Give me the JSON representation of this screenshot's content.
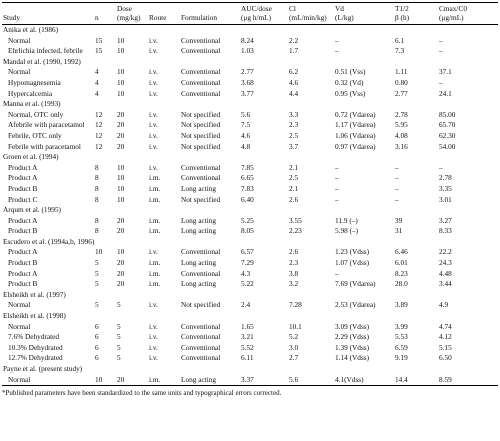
{
  "table": {
    "header": [
      [
        "Study",
        ""
      ],
      [
        "",
        "n"
      ],
      [
        "Dose",
        "(mg/kg)"
      ],
      [
        "",
        "Route"
      ],
      [
        "",
        "Formulation"
      ],
      [
        "AUC/dose",
        "(μg h/mL)"
      ],
      [
        "Cl",
        "(mL/min/kg)"
      ],
      [
        "Vd",
        "(L/kg)"
      ],
      [
        "T1/2",
        "β (h)"
      ],
      [
        "Cmax/C0",
        "(μg/mL)"
      ]
    ],
    "groups": [
      {
        "study": "Anika et al. (1986)",
        "rows": [
          [
            "Normal",
            "15",
            "10",
            "i.v.",
            "Conventional",
            "8.24",
            "2.2",
            "–",
            "6.1",
            "–"
          ],
          [
            "Ehrlichia infected, febrile",
            "15",
            "10",
            "i.v.",
            "Conventional",
            "1.03",
            "1.7",
            "–",
            "7.3",
            "–"
          ]
        ]
      },
      {
        "study": "Mandal et al. (1990, 1992)",
        "rows": [
          [
            "Normal",
            "4",
            "10",
            "i.v.",
            "Conventional",
            "2.77",
            "6.2",
            "0.51 (Vss)",
            "1.11",
            "37.1"
          ],
          [
            "Hypomagnesemia",
            "4",
            "10",
            "i.v.",
            "Conventional",
            "3.68",
            "4.6",
            "0.32 (Vd)",
            "0.80",
            "–"
          ],
          [
            "Hypercalcemia",
            "4",
            "10",
            "i.v.",
            "Conventional",
            "3.77",
            "4.4",
            "0.95 (Vss)",
            "2.77",
            "24.1"
          ]
        ]
      },
      {
        "study": "Manna et al. (1993)",
        "rows": [
          [
            "Normal, OTC only",
            "12",
            "20",
            "i.v.",
            "Not specified",
            "5.6",
            "3.3",
            "0.72 (Vdarea)",
            "2.78",
            "85.00"
          ],
          [
            "Afebrile with paracetamol",
            "12",
            "20",
            "i.v.",
            "Not specified",
            "7.5",
            "2.3",
            "1.17 (Vdarea)",
            "5.95",
            "65.70"
          ],
          [
            "Febrile, OTC only",
            "12",
            "20",
            "i.v.",
            "Not specified",
            "4.6",
            "2.5",
            "1.06 (Vdarea)",
            "4.08",
            "62.30"
          ],
          [
            "Febrile with paracetamol",
            "12",
            "20",
            "i.v.",
            "Not specified",
            "4.8",
            "3.7",
            "0.97 (Vdarea)",
            "3.16",
            "54.00"
          ]
        ]
      },
      {
        "study": "Groen et al. (1994)",
        "rows": [
          [
            "Product A",
            "8",
            "10",
            "i.v.",
            "Conventional",
            "7.85",
            "2.1",
            "–",
            "–",
            "–"
          ],
          [
            "Product A",
            "8",
            "10",
            "i.m.",
            "Conventional",
            "6.65",
            "2.5",
            "–",
            "–",
            "2.78"
          ],
          [
            "Product B",
            "8",
            "10",
            "i.m.",
            "Long acting",
            "7.83",
            "2.1",
            "–",
            "–",
            "3.35"
          ],
          [
            "Product C",
            "8",
            "10",
            "i.m.",
            "Not specified",
            "6.40",
            "2.6",
            "–",
            "–",
            "3.01"
          ]
        ]
      },
      {
        "study": "Arqum et al. (1995)",
        "rows": [
          [
            "Product A",
            "8",
            "20",
            "i.m.",
            "Long acting",
            "5.25",
            "3.55",
            "11.9 (–)",
            "39",
            "3.27"
          ],
          [
            "Product B",
            "8",
            "20",
            "i.m.",
            "Long acting",
            "8.05",
            "2.23",
            "5.98 (–)",
            "31",
            "8.33"
          ]
        ]
      },
      {
        "study": "Escudero et al. (1994a,b, 1996)",
        "rows": [
          [
            "Product A",
            "10",
            "10",
            "i.v.",
            "Conventional",
            "6.57",
            "2.6",
            "1.23 (Vdss)",
            "6.46",
            "22.2"
          ],
          [
            "Product B",
            "5",
            "20",
            "i.m.",
            "Long acting",
            "7.29",
            "2.3",
            "1.07 (Vdss)",
            "6.01",
            "24.3"
          ],
          [
            "Product A",
            "5",
            "20",
            "i.m.",
            "Conventional",
            "4.3",
            "3.8",
            "–",
            "8.23",
            "4.48"
          ],
          [
            "Product B",
            "5",
            "20",
            "i.m.",
            "Long acting",
            "5.22",
            "3.2",
            "7.69 (Vdarea)",
            "28.0",
            "3.44"
          ]
        ]
      },
      {
        "study": "Elsheikh et al. (1997)",
        "rows": [
          [
            "Normal",
            "5",
            "5",
            "i.v.",
            "Not specified",
            "2.4",
            "7.28",
            "2.53 (Vdarea)",
            "3.89",
            "4.9"
          ]
        ]
      },
      {
        "study": "Elsheikh et al. (1998)",
        "rows": [
          [
            "Normal",
            "6",
            "5",
            "i.v.",
            "Conventional",
            "1.65",
            "10.1",
            "3.09 (Vdss)",
            "3.99",
            "4.74"
          ],
          [
            "7.6% Dehydrated",
            "6",
            "5",
            "i.v.",
            "Conventional",
            "3.21",
            "5.2",
            "2.29 (Vdss)",
            "5.53",
            "4.12"
          ],
          [
            "10.3% Dehydrated",
            "6",
            "5",
            "i.v.",
            "Conventional",
            "5.52",
            "3.0",
            "1.39 (Vdss)",
            "6.59",
            "5.15"
          ],
          [
            "12.7% Dehydrated",
            "6",
            "5",
            "i.v.",
            "Conventional",
            "6.11",
            "2.7",
            "1.14 (Vdss)",
            "9.19",
            "6.50"
          ]
        ]
      },
      {
        "study": "Payne et al. (present study)",
        "rows": [
          [
            "Normal",
            "10",
            "20",
            "i.m.",
            "Long acting",
            "3.37",
            "5.6",
            "4.1(Vdss)",
            "14.4",
            "8.59"
          ]
        ]
      }
    ],
    "footnote": "*Published parameters have been standardized to the same units and typographical errors corrected."
  }
}
